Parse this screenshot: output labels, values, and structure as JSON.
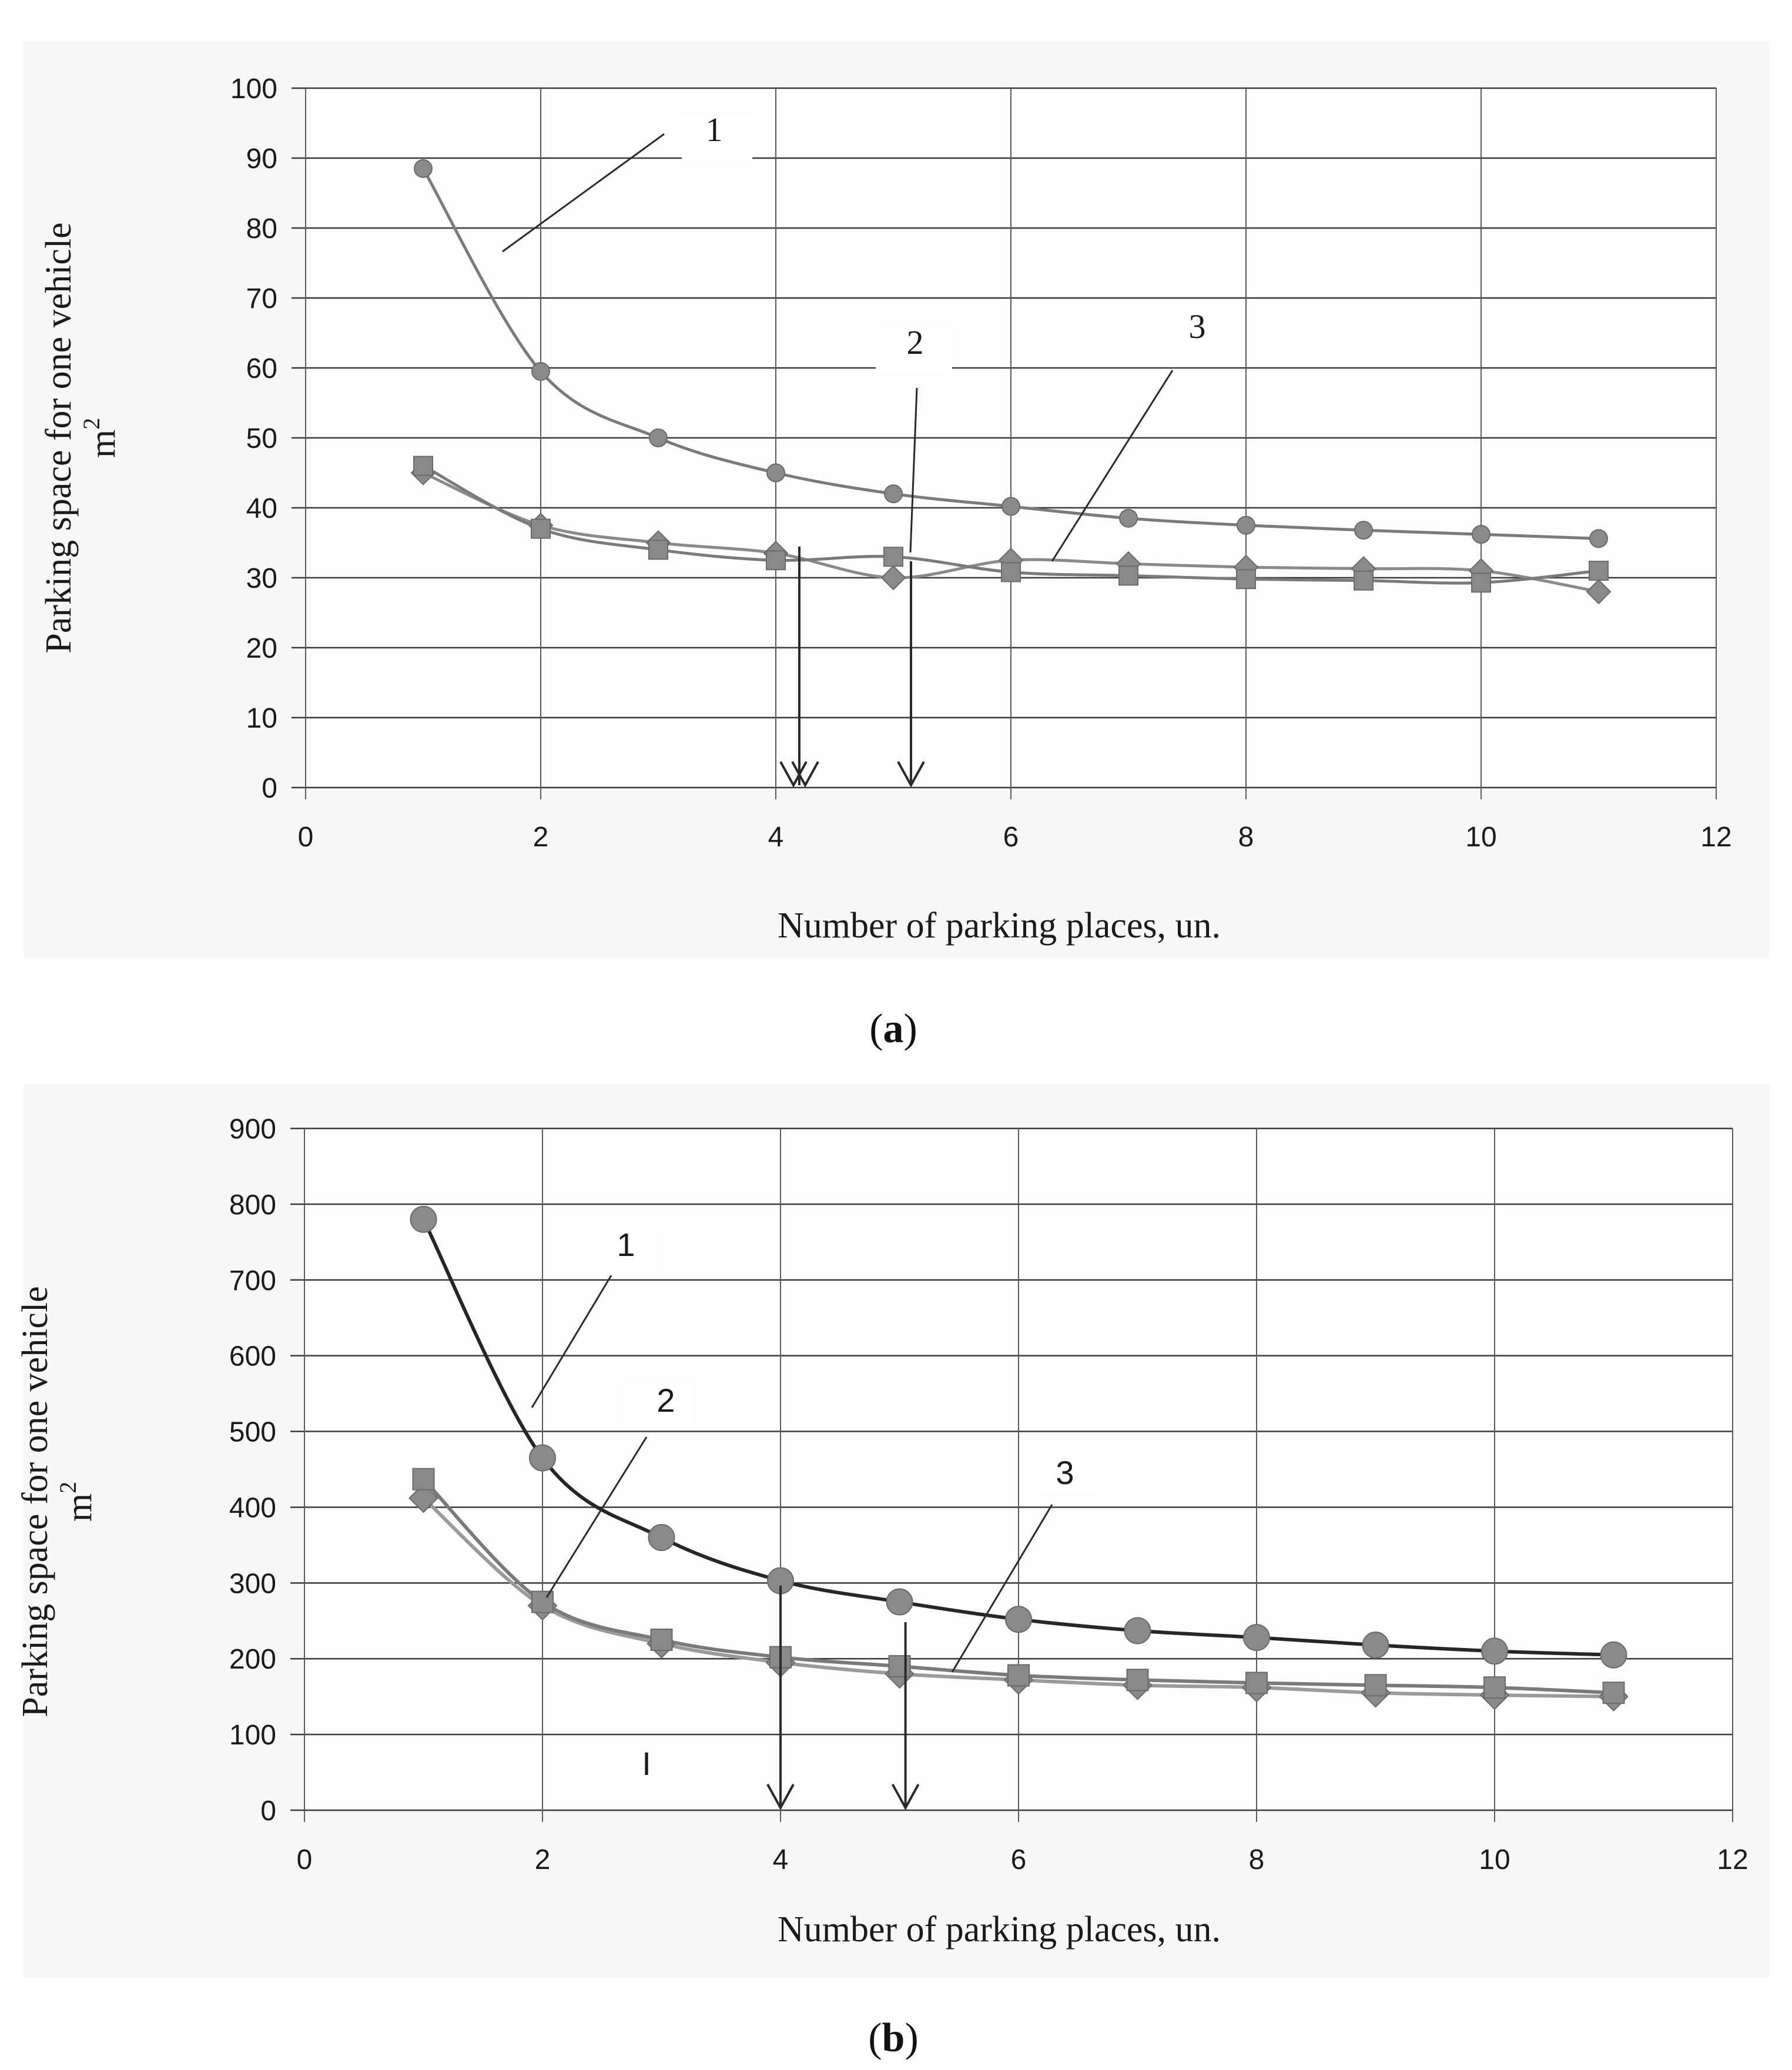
{
  "chart_data": [
    {
      "type": "line",
      "panel": "a",
      "caption_open": "(",
      "caption_letter": "a",
      "caption_close": ")",
      "xlabel": "Number of parking places, un.",
      "ylabel": "Parking space for one vehicle",
      "ylabel_unit": "m",
      "ylabel_unit_sup": "2",
      "xlim": [
        0,
        12
      ],
      "ylim": [
        0,
        100
      ],
      "xticks": [
        "0",
        "2",
        "4",
        "6",
        "8",
        "10",
        "12"
      ],
      "yticks": [
        "0",
        "10",
        "20",
        "30",
        "40",
        "50",
        "60",
        "70",
        "80",
        "90",
        "100"
      ],
      "grid": true,
      "x": [
        1,
        2,
        3,
        4,
        5,
        6,
        7,
        8,
        9,
        10,
        11
      ],
      "series": [
        {
          "name": "1",
          "marker": "circle",
          "color": "#7f7f7f",
          "values": [
            88.5,
            59.5,
            50,
            45,
            42,
            40.2,
            38.5,
            37.5,
            36.8,
            36.2,
            35.6
          ]
        },
        {
          "name": "2",
          "marker": "square",
          "color": "#7f7f7f",
          "values": [
            46,
            37,
            34,
            32.5,
            33,
            30.8,
            30.3,
            29.8,
            29.6,
            29.3,
            31
          ]
        },
        {
          "name": "3",
          "marker": "diamond",
          "color": "#7f7f7f",
          "values": [
            45,
            37.5,
            35,
            33.5,
            30,
            32.5,
            32,
            31.5,
            31.3,
            31,
            28
          ]
        }
      ],
      "curve_labels": [
        "1",
        "2",
        "3"
      ],
      "arrows_at_x": [
        4.2,
        5.15
      ]
    },
    {
      "type": "line",
      "panel": "b",
      "caption_open": "(",
      "caption_letter": "b",
      "caption_close": ")",
      "xlabel": "Number of parking places, un.",
      "ylabel": "Parking space for one vehicle",
      "ylabel_unit": "m",
      "ylabel_unit_sup": "2",
      "xlim": [
        0,
        12
      ],
      "ylim": [
        0,
        900
      ],
      "xticks": [
        "0",
        "2",
        "4",
        "6",
        "8",
        "10",
        "12"
      ],
      "yticks": [
        "0",
        "100",
        "200",
        "300",
        "400",
        "500",
        "600",
        "700",
        "800",
        "900"
      ],
      "grid": true,
      "x": [
        1,
        2,
        3,
        4,
        5,
        6,
        7,
        8,
        9,
        10,
        11
      ],
      "series": [
        {
          "name": "1",
          "marker": "circle",
          "color": "#7f7f7f",
          "values": [
            780,
            465,
            360,
            303,
            275,
            252,
            237,
            228,
            218,
            210,
            205
          ]
        },
        {
          "name": "2",
          "marker": "square",
          "color": "#7f7f7f",
          "values": [
            437,
            275,
            225,
            202,
            190,
            178,
            172,
            168,
            165,
            162,
            155
          ]
        },
        {
          "name": "3",
          "marker": "diamond",
          "color": "#7f7f7f",
          "values": [
            412,
            270,
            220,
            195,
            180,
            172,
            165,
            162,
            155,
            152,
            150
          ]
        }
      ],
      "curve_labels": [
        "1",
        "2",
        "3"
      ],
      "arrows_at_x": [
        4.0,
        5.05
      ],
      "stray_mark": "I"
    }
  ]
}
